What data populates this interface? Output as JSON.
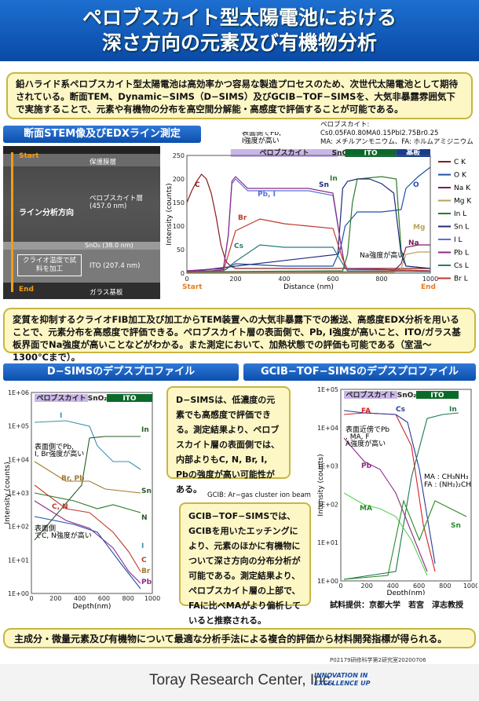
{
  "title": {
    "line1": "ペロブスカイト型太陽電池における",
    "line2": "深さ方向の元素及び有機物分析"
  },
  "intro": "鉛ハライド系ペロブスカイト型太陽電池は高効率かつ容易な製造プロセスのため、次世代太陽電池として期待されている。断面TEM、Dynamic−SIMS（D−SIMS）及びGCIB−TOF−SIMSを、大気非暴露雰囲気下で実施することで、元素や有機物の分布を高空間分解能・高感度で評価することが可能である。",
  "stem": {
    "heading": "断面STEM像及びEDXライン測定",
    "start": "Start",
    "end": "End",
    "layer_protect": "保護膜層",
    "layer_perov": "ペロブスカイト層",
    "perov_thick": "(457.0 nm)",
    "analysis_dir": "ライン分析方向",
    "sno2": "SnO₂ (38.0 nm)",
    "ito": "ITO (207.4 nm)",
    "cryo": "クライオ温度で試料を加工",
    "glass": "ガラス基板"
  },
  "edx": {
    "formula_label": "ペロブスカイト: Cs0.05FA0.80MA0.15PbI2.75Br0.25",
    "formula_note": "MA: メチルアンモニウム、FA: ホルムアミジニウム",
    "note_surface": "表面側でPb, I強度が高い",
    "note_na": "Na強度が高い",
    "bands": [
      "ペロブスカイト",
      "SnO₂",
      "ITO",
      "基板"
    ],
    "legend": [
      "C K",
      "O K",
      "Na K",
      "Mg K",
      "In L",
      "Sn L",
      "I L",
      "Pb L",
      "Cs L",
      "Br L"
    ],
    "labels": {
      "C": "C",
      "PbI": "Pb, I",
      "Br": "Br",
      "Cs": "Cs",
      "In": "In",
      "Sn": "Sn",
      "O": "O",
      "Mg": "Mg",
      "Na": "Na"
    },
    "start": "Start",
    "end": "End"
  },
  "chart_data": {
    "type": "line",
    "xlabel": "Distance (nm)",
    "ylabel": "Intensity (counts)",
    "xlim": [
      0,
      1000
    ],
    "ylim": [
      0,
      250
    ],
    "xticks": [
      0,
      200,
      400,
      600,
      800,
      1000
    ],
    "yticks": [
      0,
      50,
      100,
      150,
      200,
      250
    ],
    "series": [
      {
        "name": "C K",
        "color": "#8b1a1a",
        "x": [
          0,
          20,
          40,
          60,
          80,
          100,
          120,
          140,
          160,
          180,
          200,
          300,
          400,
          500,
          600,
          650,
          700,
          800,
          900,
          1000
        ],
        "y": [
          150,
          175,
          195,
          210,
          200,
          170,
          120,
          60,
          25,
          15,
          10,
          10,
          10,
          10,
          10,
          10,
          10,
          10,
          10,
          10
        ]
      },
      {
        "name": "O K",
        "color": "#1f4fa8",
        "x": [
          0,
          100,
          160,
          180,
          200,
          400,
          600,
          630,
          650,
          700,
          800,
          880,
          900,
          950,
          1000
        ],
        "y": [
          5,
          5,
          8,
          15,
          20,
          15,
          15,
          50,
          100,
          130,
          130,
          135,
          180,
          205,
          225
        ]
      },
      {
        "name": "Na K",
        "color": "#7a1e5a",
        "x": [
          0,
          600,
          800,
          850,
          880,
          900,
          950,
          1000
        ],
        "y": [
          2,
          3,
          3,
          5,
          20,
          55,
          60,
          60
        ]
      },
      {
        "name": "Mg K",
        "color": "#b9a25a",
        "x": [
          0,
          850,
          880,
          900,
          950,
          1000
        ],
        "y": [
          2,
          2,
          10,
          40,
          45,
          45
        ]
      },
      {
        "name": "In L",
        "color": "#2a7a2a",
        "x": [
          0,
          640,
          660,
          680,
          700,
          800,
          860,
          880,
          900,
          1000
        ],
        "y": [
          3,
          5,
          40,
          150,
          200,
          205,
          200,
          50,
          15,
          10
        ]
      },
      {
        "name": "Sn L",
        "color": "#1f2a7a",
        "x": [
          0,
          620,
          640,
          660,
          700,
          750,
          800,
          850,
          880,
          900,
          1000
        ],
        "y": [
          3,
          40,
          180,
          195,
          200,
          200,
          190,
          170,
          40,
          15,
          10
        ]
      },
      {
        "name": "I L",
        "color": "#5a6fd6",
        "x": [
          0,
          150,
          170,
          185,
          200,
          250,
          300,
          400,
          500,
          600,
          630,
          650,
          1000
        ],
        "y": [
          5,
          10,
          80,
          190,
          200,
          175,
          175,
          175,
          175,
          165,
          70,
          10,
          5
        ]
      },
      {
        "name": "Pb L",
        "color": "#8a2a8a",
        "x": [
          0,
          150,
          170,
          185,
          200,
          250,
          300,
          400,
          500,
          600,
          630,
          650,
          1000
        ],
        "y": [
          5,
          10,
          80,
          195,
          205,
          180,
          180,
          180,
          180,
          170,
          70,
          10,
          5
        ]
      },
      {
        "name": "Cs L",
        "color": "#2a7a7a",
        "x": [
          0,
          150,
          200,
          300,
          400,
          500,
          600,
          640,
          660,
          1000
        ],
        "y": [
          3,
          5,
          25,
          60,
          55,
          55,
          55,
          20,
          5,
          3
        ]
      },
      {
        "name": "Br L",
        "color": "#c0392b",
        "x": [
          0,
          150,
          200,
          300,
          400,
          500,
          600,
          640,
          660,
          1000
        ],
        "y": [
          3,
          5,
          90,
          115,
          105,
          100,
          95,
          30,
          8,
          5
        ]
      }
    ]
  },
  "stem_note": "変質を抑制するクライオFIB加工及び加工からTEM装置への大気非暴露下での搬送、高感度EDX分析を用いることで、元素分布を高感度で評価できる。ペロブスカイト層の表面側で、Pb, I強度が高いこと、ITO/ガラス基板界面でNa強度が高いことなどがわかる。また測定において、加熱状態での評価も可能である（室温〜1300℃まで）。",
  "dsims": {
    "heading": "D−SIMSのデプスプロファイル",
    "bands": [
      "ペロブスカイト",
      "SnO₂",
      "ITO"
    ],
    "yticks": [
      "1E+06",
      "1E+05",
      "1E+04",
      "1E+03",
      "1E+02",
      "1E+01",
      "1E+00"
    ],
    "xticks": [
      "0",
      "200",
      "400",
      "600",
      "800",
      "1000"
    ],
    "xlabel": "Depth(nm)",
    "ylabel": "Intensity (counts)",
    "note1": "表面側でPb, I, Br強度が高い",
    "note2": "表面側でC, N強度が高い",
    "labels": {
      "I": "I",
      "In": "In",
      "BrPb": "Br, Pb",
      "CN": "C, N",
      "Sn": "Sn",
      "N": "N",
      "I2": "I",
      "C": "C",
      "Br": "Br",
      "Pb": "Pb"
    }
  },
  "dsims_callout": "D−SIMSは、低濃度の元素でも高感度で評価できる。測定結果より、ペロブスカイト層の表面側では、内部よりもC, N, Br, I, Pbの強度が高い可能性がある。",
  "gcib": {
    "heading": "GCIB−TOF−SIMSのデプスプロファイル",
    "bands": [
      "ペロブスカイト",
      "SnO₂",
      "ITO"
    ],
    "beam_note": "GCIB: Ar−gas cluster ion beam",
    "yticks": [
      "1E+05",
      "1E+04",
      "1E+03",
      "1E+02",
      "1E+01",
      "1E+00"
    ],
    "xticks": [
      "0",
      "200",
      "400",
      "600",
      "800",
      "1000"
    ],
    "xlabel": "Depth(nm)",
    "ylabel": "Intensity (counts)",
    "note1": "表面近傍でPb, MA, FA強度が高い",
    "ma_def": "MA : CH₃NH₃",
    "fa_def": "FA : (NH₂)₂CH",
    "labels": {
      "FA": "FA",
      "Cs": "Cs",
      "In": "In",
      "Pb": "Pb",
      "MA": "MA",
      "Sn": "Sn"
    },
    "credit": "試料提供：京都大学　若宮　淳志教授"
  },
  "gcib_callout": "GCIB−TOF−SIMSでは、GCIBを用いたエッチングにより、元素のほかに有機物について深さ方向の分布分析が可能である。測定結果より、ペロブスカイト層の上部で、FAに比べMAがより偏析していると推察される。",
  "conclusion": "主成分・微量元素及び有機物について最適な分析手法による複合的評価から材料開発指標が得られる。",
  "footer": {
    "code": "P02179研修科学第2研究室20200706",
    "company": "Toray Research Center, Inc.",
    "tagline1": "INNOVATION IN",
    "tagline2": "EXCELLENCE UP"
  }
}
